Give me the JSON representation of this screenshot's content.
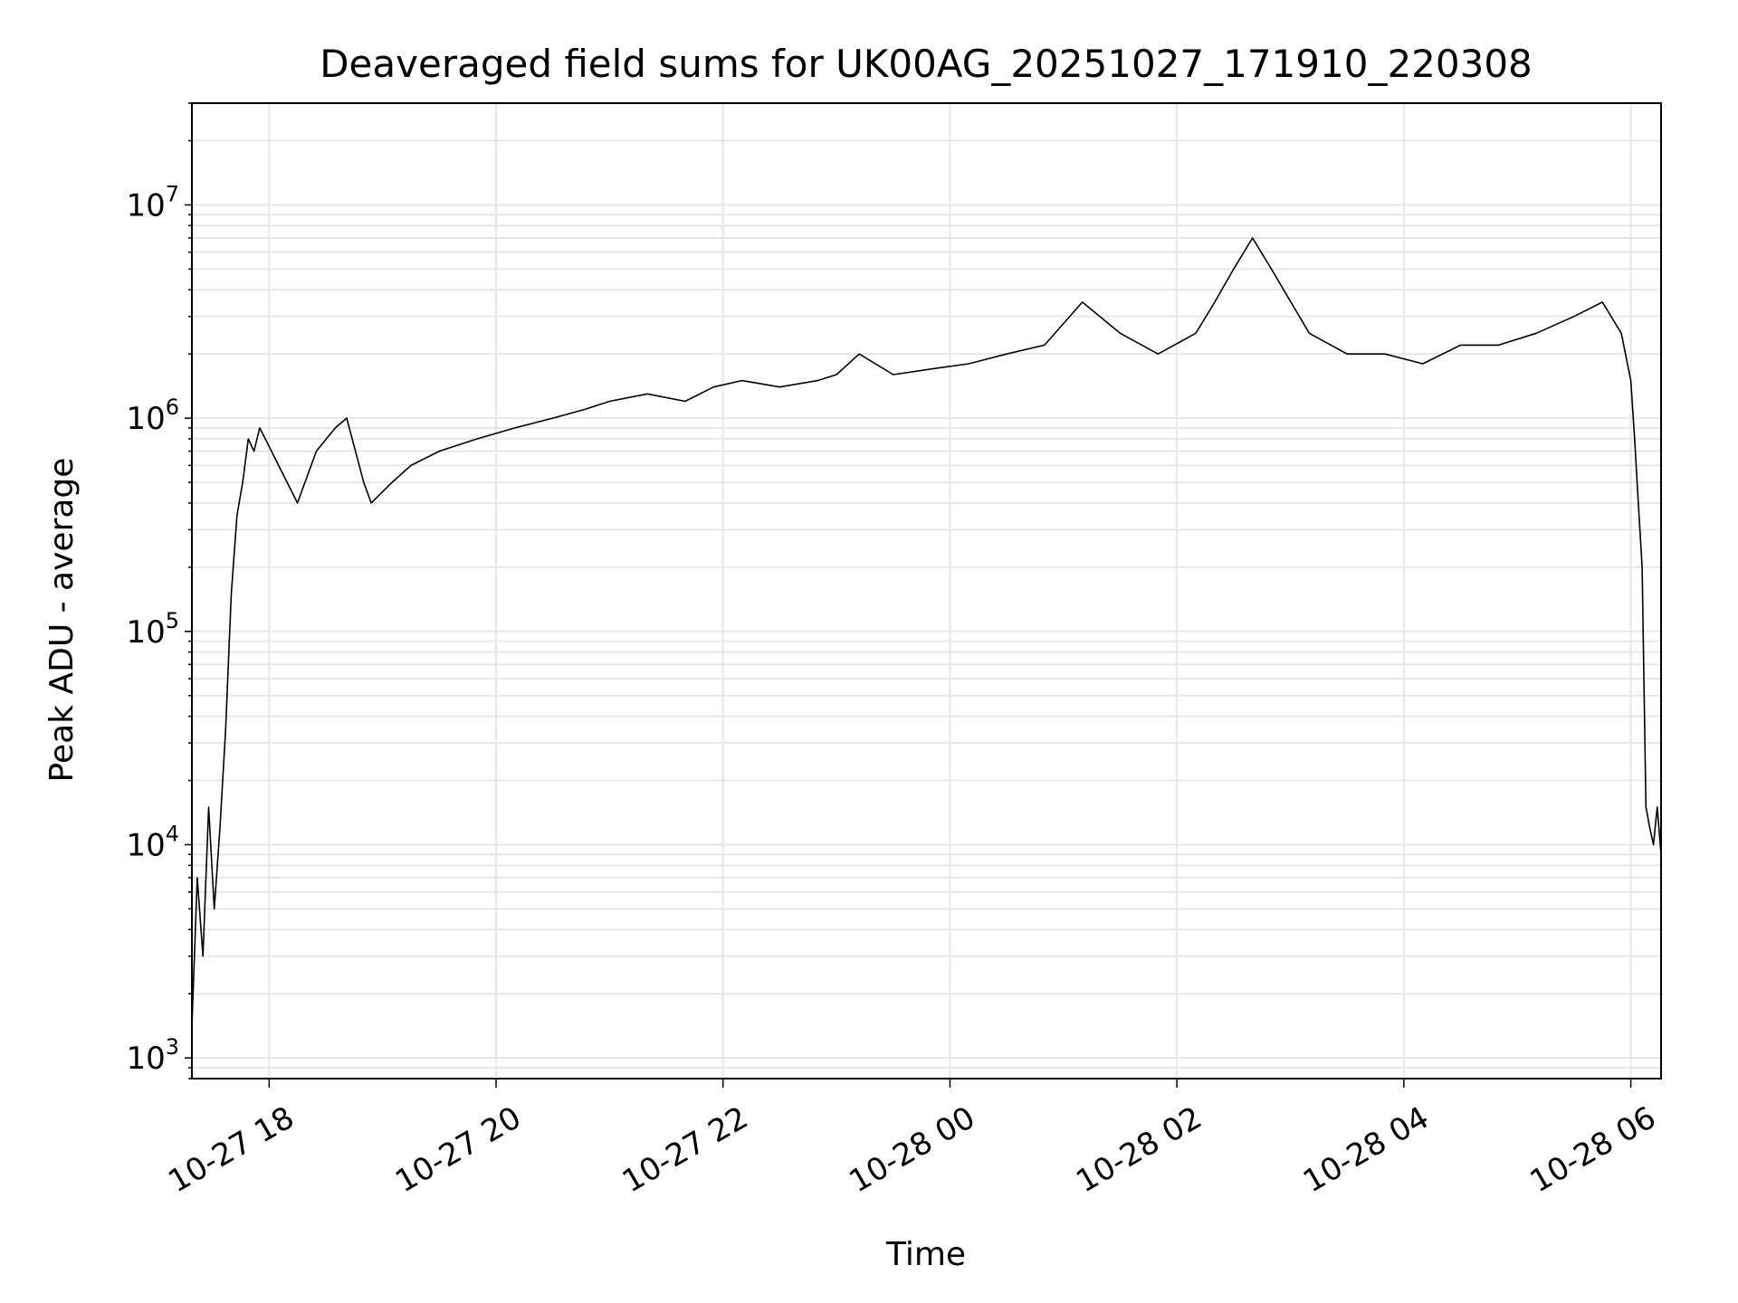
{
  "chart_data": {
    "type": "line",
    "title": "Deaveraged field sums for UK00AG_20251027_171910_220308",
    "xlabel": "Time",
    "ylabel": "Peak ADU - average",
    "yscale": "log",
    "ylim": [
      800,
      30000000
    ],
    "xlim": [
      "2025-10-27T17:19:10",
      "2025-10-28T06:16:00"
    ],
    "grid": true,
    "line_color": "#000000",
    "grid_color": "#e6e6e6",
    "x_ticks": [
      {
        "t": "2025-10-27T18:00:00",
        "label": "10-27 18"
      },
      {
        "t": "2025-10-27T20:00:00",
        "label": "10-27 20"
      },
      {
        "t": "2025-10-27T22:00:00",
        "label": "10-27 22"
      },
      {
        "t": "2025-10-28T00:00:00",
        "label": "10-28 00"
      },
      {
        "t": "2025-10-28T02:00:00",
        "label": "10-28 02"
      },
      {
        "t": "2025-10-28T04:00:00",
        "label": "10-28 04"
      },
      {
        "t": "2025-10-28T06:00:00",
        "label": "10-28 06"
      }
    ],
    "y_ticks": [
      {
        "value": 1000,
        "base": "10",
        "exp": "3"
      },
      {
        "value": 10000,
        "base": "10",
        "exp": "4"
      },
      {
        "value": 100000,
        "base": "10",
        "exp": "5"
      },
      {
        "value": 1000000,
        "base": "10",
        "exp": "6"
      },
      {
        "value": 10000000,
        "base": "10",
        "exp": "7"
      }
    ],
    "series": [
      {
        "x": [
          "2025-10-27T17:19",
          "2025-10-27T17:22",
          "2025-10-27T17:25",
          "2025-10-27T17:28",
          "2025-10-27T17:31",
          "2025-10-27T17:34",
          "2025-10-27T17:37",
          "2025-10-27T17:40",
          "2025-10-27T17:43",
          "2025-10-27T17:46",
          "2025-10-27T17:49",
          "2025-10-27T17:52",
          "2025-10-27T17:55",
          "2025-10-27T17:58",
          "2025-10-27T18:05",
          "2025-10-27T18:15",
          "2025-10-27T18:25",
          "2025-10-27T18:35",
          "2025-10-27T18:41",
          "2025-10-27T18:50",
          "2025-10-27T18:54",
          "2025-10-27T19:05",
          "2025-10-27T19:15",
          "2025-10-27T19:30",
          "2025-10-27T19:50",
          "2025-10-27T20:10",
          "2025-10-27T20:30",
          "2025-10-27T20:47",
          "2025-10-27T21:00",
          "2025-10-27T21:20",
          "2025-10-27T21:40",
          "2025-10-27T21:55",
          "2025-10-27T22:10",
          "2025-10-27T22:30",
          "2025-10-27T22:50",
          "2025-10-27T23:00",
          "2025-10-27T23:12",
          "2025-10-27T23:30",
          "2025-10-27T23:50",
          "2025-10-28T00:10",
          "2025-10-28T00:30",
          "2025-10-28T00:50",
          "2025-10-28T01:10",
          "2025-10-28T01:30",
          "2025-10-28T01:50",
          "2025-10-28T02:10",
          "2025-10-28T02:20",
          "2025-10-28T02:30",
          "2025-10-28T02:40",
          "2025-10-28T02:50",
          "2025-10-28T03:10",
          "2025-10-28T03:30",
          "2025-10-28T03:50",
          "2025-10-28T04:10",
          "2025-10-28T04:30",
          "2025-10-28T04:50",
          "2025-10-28T05:10",
          "2025-10-28T05:30",
          "2025-10-28T05:45",
          "2025-10-28T05:55",
          "2025-10-28T06:00",
          "2025-10-28T06:02",
          "2025-10-28T06:04",
          "2025-10-28T06:06",
          "2025-10-28T06:08",
          "2025-10-28T06:10",
          "2025-10-28T06:12",
          "2025-10-28T06:14",
          "2025-10-28T06:16"
        ],
        "values": [
          1300,
          7000,
          3000,
          15000,
          5000,
          12000,
          35000,
          150000,
          350000,
          500000,
          800000,
          700000,
          900000,
          800000,
          600000,
          400000,
          700000,
          900000,
          1000000,
          500000,
          400000,
          500000,
          600000,
          700000,
          800000,
          900000,
          1000000,
          1100000,
          1200000,
          1300000,
          1200000,
          1400000,
          1500000,
          1400000,
          1500000,
          1600000,
          2000000,
          1600000,
          1700000,
          1800000,
          2000000,
          2200000,
          3500000,
          2500000,
          2000000,
          2500000,
          3500000,
          5000000,
          7000000,
          5000000,
          2500000,
          2000000,
          2000000,
          1800000,
          2200000,
          2200000,
          2500000,
          3000000,
          3500000,
          2500000,
          1500000,
          800000,
          400000,
          200000,
          15000,
          12000,
          10000,
          15000,
          9000
        ]
      }
    ]
  }
}
